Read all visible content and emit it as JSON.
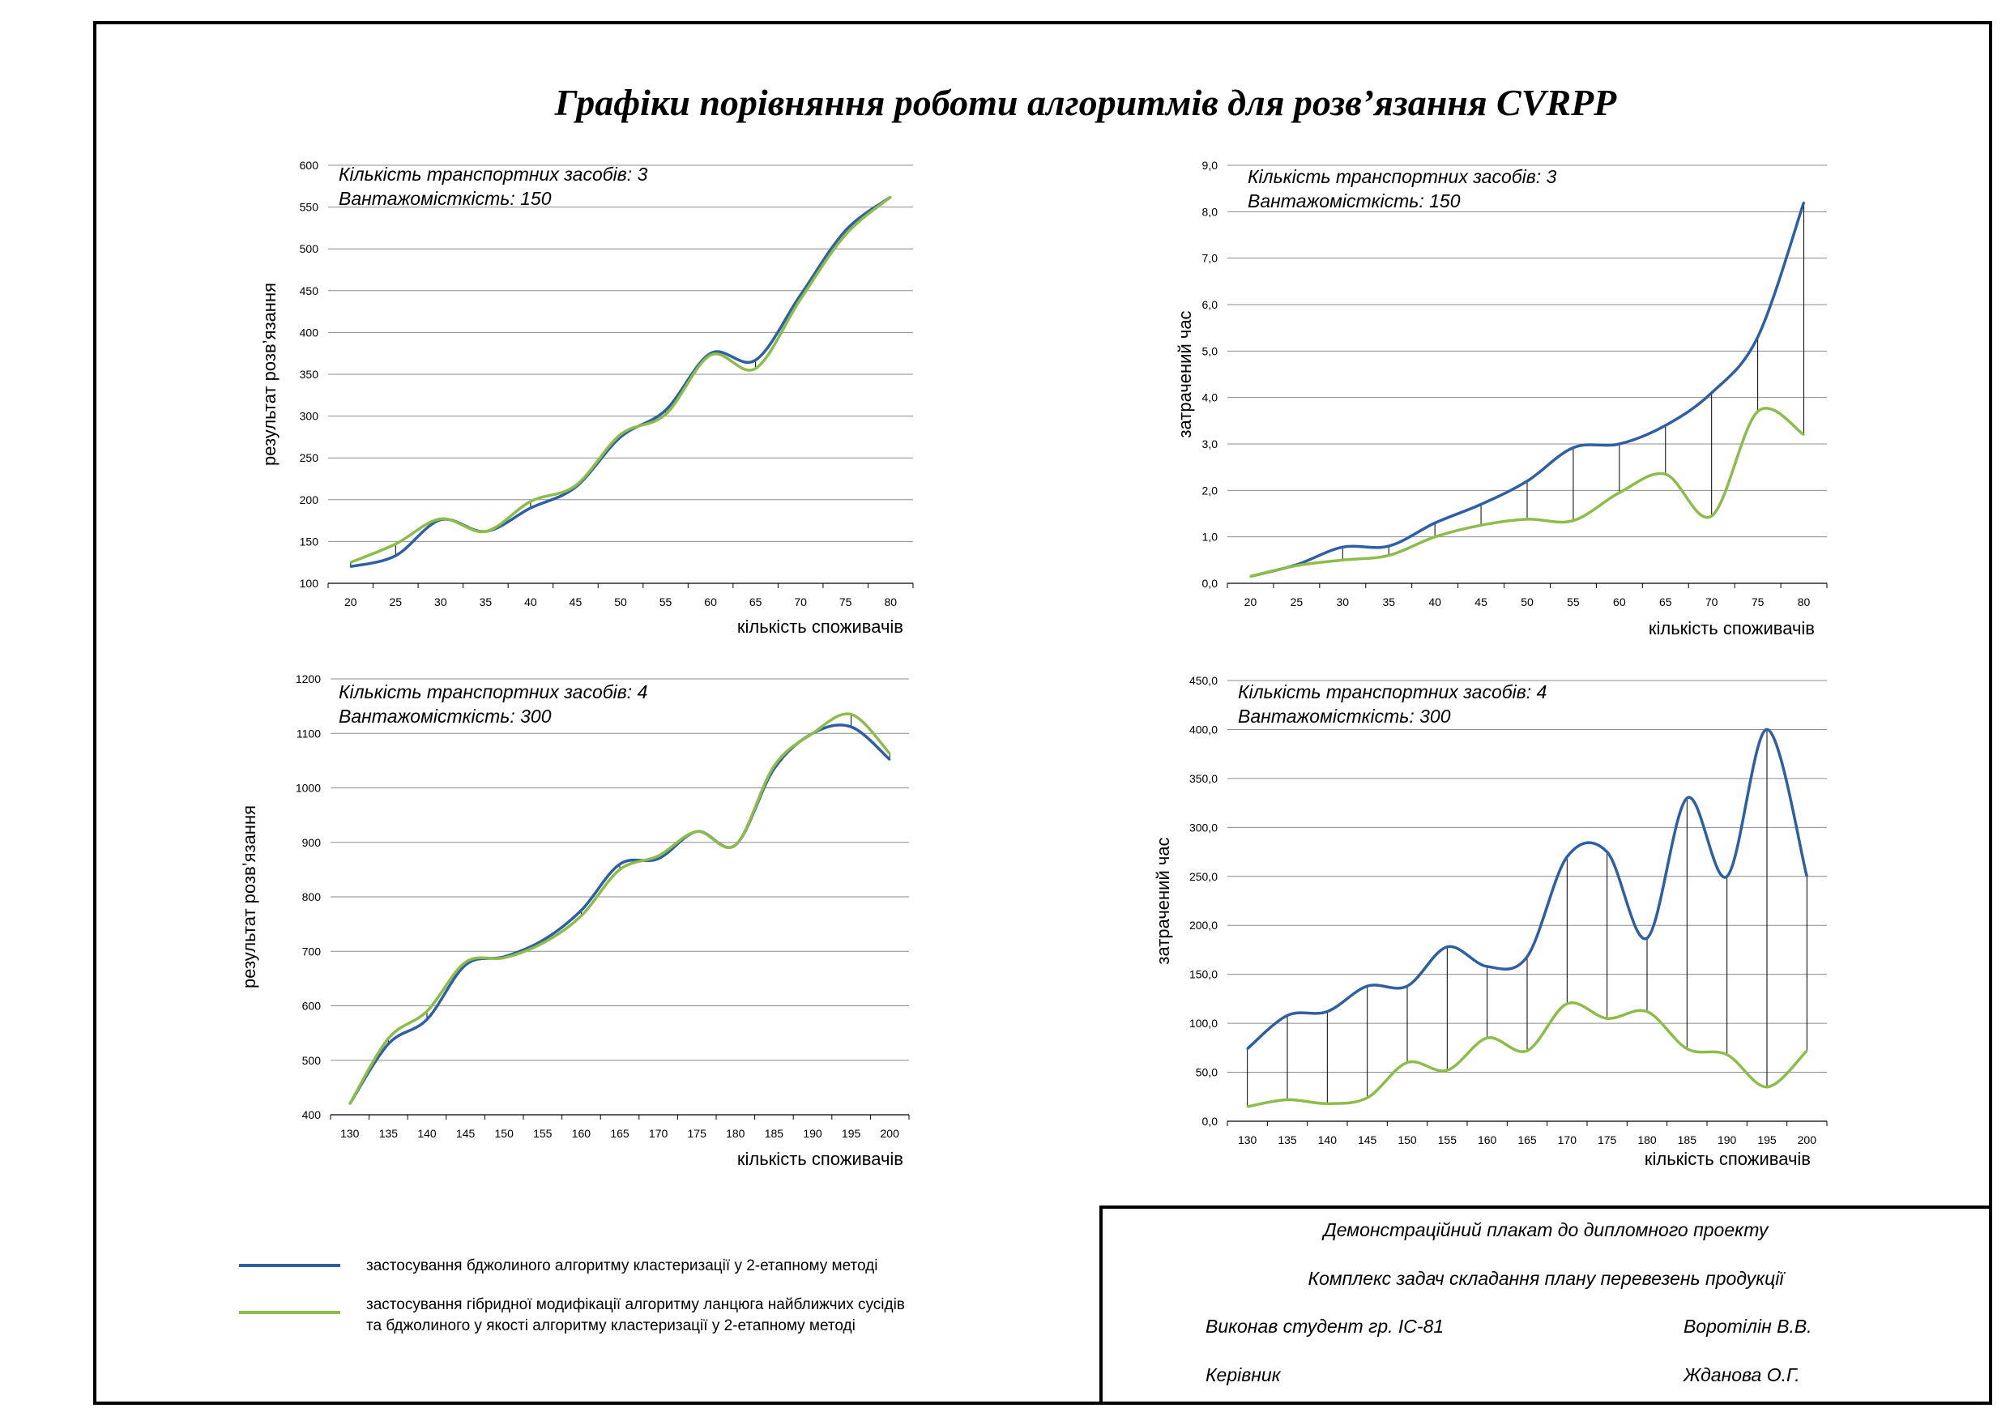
{
  "title": "Графіки порівняння роботи алгоритмів для розв’язання CVRPP",
  "legend": {
    "series_1": "застосування бджолиного алгоритму кластеризації у 2-етапному методі",
    "series_2_line1": "застосування гібридної модифікації алгоритму ланцюга найближчих сусідів",
    "series_2_line2": "та бджолиного у якості алгоритму кластеризації у 2-етапному методі"
  },
  "stamp": {
    "line1": "Демонстраційний плакат до дипломного проекту",
    "line2": "Комплекс задач складання плану перевезень продукції",
    "performed_label": "Виконав студент гр. ІС-81",
    "performed_name": "Воротілін В.В.",
    "supervisor_label": "Керівник",
    "supervisor_name": "Жданова О.Г."
  },
  "colors": {
    "series_blue": "#2e5fa3",
    "series_green": "#8cbd4a",
    "grid": "#8c8c8c",
    "frame": "#000000"
  },
  "chart_data": [
    {
      "type": "line",
      "note_line1": "Кількість транспортних засобів: 3",
      "note_line2": "Вантажомісткість: 150",
      "xlabel": "кількість споживачів",
      "ylabel": "результат розв’язання",
      "x": [
        20,
        25,
        30,
        35,
        40,
        45,
        50,
        55,
        60,
        65,
        70,
        75,
        80
      ],
      "ylim": [
        100,
        600
      ],
      "yticks": [
        "100",
        "150",
        "200",
        "250",
        "300",
        "350",
        "400",
        "450",
        "500",
        "550",
        "600"
      ],
      "drop_lines": true,
      "series": [
        {
          "color": "blue",
          "values": [
            120,
            133,
            176,
            162,
            190,
            215,
            275,
            307,
            375,
            367,
            445,
            522,
            562
          ]
        },
        {
          "color": "green",
          "values": [
            125,
            147,
            177,
            162,
            198,
            217,
            278,
            302,
            373,
            357,
            440,
            517,
            562
          ]
        }
      ]
    },
    {
      "type": "line",
      "note_line1": "Кількість транспортних засобів: 3",
      "note_line2": "Вантажомісткість: 150",
      "xlabel": "кількість споживачів",
      "ylabel": "затрачений час",
      "x": [
        20,
        25,
        30,
        35,
        40,
        45,
        50,
        55,
        60,
        65,
        70,
        75,
        80
      ],
      "ylim": [
        0,
        9
      ],
      "yticks": [
        "0,0",
        "1,0",
        "2,0",
        "3,0",
        "4,0",
        "5,0",
        "6,0",
        "7,0",
        "8,0",
        "9,0"
      ],
      "drop_lines": true,
      "series": [
        {
          "color": "blue",
          "values": [
            0.15,
            0.4,
            0.78,
            0.8,
            1.3,
            1.7,
            2.2,
            2.92,
            3.0,
            3.4,
            4.1,
            5.3,
            8.2
          ]
        },
        {
          "color": "green",
          "values": [
            0.15,
            0.38,
            0.5,
            0.6,
            1.0,
            1.25,
            1.38,
            1.35,
            1.95,
            2.35,
            1.45,
            3.7,
            3.2
          ]
        }
      ]
    },
    {
      "type": "line",
      "note_line1": "Кількість транспортних засобів: 4",
      "note_line2": "Вантажомісткість: 300",
      "xlabel": "кількість споживачів",
      "ylabel": "результат розв’язання",
      "x": [
        130,
        135,
        140,
        145,
        150,
        155,
        160,
        165,
        170,
        175,
        180,
        185,
        190,
        195,
        200
      ],
      "ylim": [
        400,
        1200
      ],
      "yticks": [
        "400",
        "500",
        "600",
        "700",
        "800",
        "900",
        "1000",
        "1100",
        "1200"
      ],
      "drop_lines": true,
      "series": [
        {
          "color": "blue",
          "values": [
            420,
            530,
            575,
            675,
            690,
            720,
            775,
            860,
            870,
            920,
            895,
            1035,
            1100,
            1112,
            1052
          ]
        },
        {
          "color": "green",
          "values": [
            420,
            540,
            590,
            680,
            688,
            715,
            765,
            850,
            875,
            920,
            895,
            1040,
            1100,
            1135,
            1063
          ]
        }
      ]
    },
    {
      "type": "line",
      "note_line1": "Кількість транспортних засобів: 4",
      "note_line2": "Вантажомісткість: 300",
      "xlabel": "кількість споживачів",
      "ylabel": "затрачений час",
      "x": [
        130,
        135,
        140,
        145,
        150,
        155,
        160,
        165,
        170,
        175,
        180,
        185,
        190,
        195,
        200
      ],
      "ylim": [
        0,
        450
      ],
      "yticks": [
        "0,0",
        "50,0",
        "100,0",
        "150,0",
        "200,0",
        "250,0",
        "300,0",
        "350,0",
        "400,0",
        "450,0"
      ],
      "drop_lines": true,
      "series": [
        {
          "color": "blue",
          "values": [
            74,
            108,
            112,
            138,
            138,
            178,
            158,
            168,
            270,
            275,
            187,
            330,
            250,
            400,
            250
          ]
        },
        {
          "color": "green",
          "values": [
            15,
            22,
            18,
            24,
            60,
            52,
            85,
            72,
            120,
            105,
            112,
            74,
            68,
            35,
            72
          ]
        }
      ]
    }
  ]
}
